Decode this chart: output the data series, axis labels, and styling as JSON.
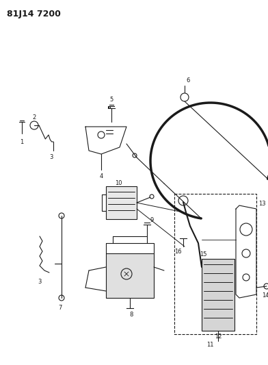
{
  "title": "81J14 7200",
  "bg": "#ffffff",
  "lc": "#1a1a1a",
  "figsize": [
    3.92,
    5.33
  ],
  "dpi": 100
}
